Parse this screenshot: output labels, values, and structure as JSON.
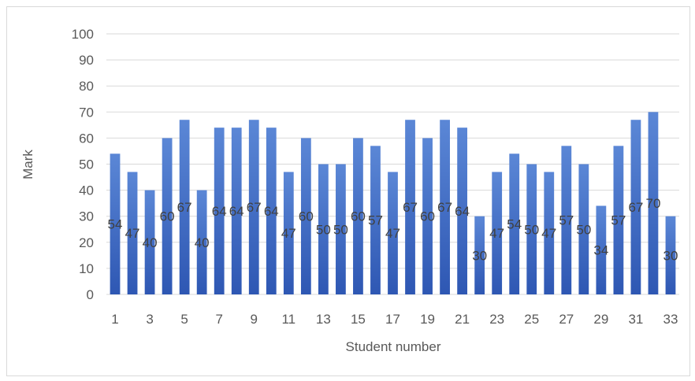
{
  "chart_data": {
    "type": "bar",
    "categories": [
      "1",
      "2",
      "3",
      "4",
      "5",
      "6",
      "7",
      "8",
      "9",
      "10",
      "11",
      "12",
      "13",
      "14",
      "15",
      "16",
      "17",
      "18",
      "19",
      "20",
      "21",
      "22",
      "23",
      "24",
      "25",
      "26",
      "27",
      "28",
      "29",
      "30",
      "31",
      "32",
      "33"
    ],
    "x_tick_labels": [
      "1",
      "3",
      "5",
      "7",
      "9",
      "11",
      "13",
      "15",
      "17",
      "19",
      "21",
      "23",
      "25",
      "27",
      "29",
      "31",
      "33"
    ],
    "values": [
      54,
      47,
      40,
      60,
      67,
      40,
      64,
      64,
      67,
      64,
      47,
      60,
      50,
      50,
      60,
      57,
      47,
      67,
      60,
      67,
      64,
      30,
      47,
      54,
      50,
      47,
      57,
      50,
      34,
      57,
      67,
      70,
      30
    ],
    "xlabel": "Student number",
    "ylabel": "Mark",
    "ylim": [
      0,
      100
    ],
    "y_ticks": [
      0,
      10,
      20,
      30,
      40,
      50,
      60,
      70,
      80,
      90,
      100
    ],
    "grid": true,
    "data_labels": true,
    "bar_color_top": "#5b87d6",
    "bar_color_bottom": "#2e57b3",
    "gridline_color": "#d9d9d9"
  }
}
